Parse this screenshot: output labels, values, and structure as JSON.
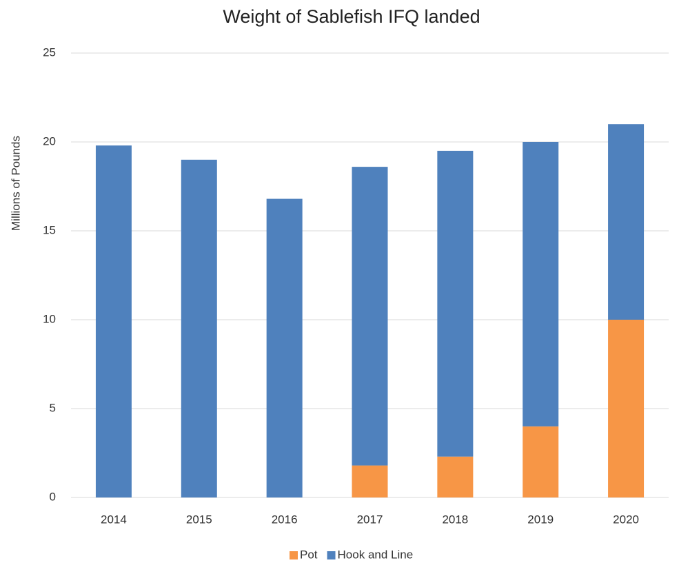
{
  "chart_data": {
    "type": "stacked_bar",
    "title": "Weight of Sablefish IFQ landed",
    "y_label": "Millions of Pounds",
    "categories": [
      "2014",
      "2015",
      "2016",
      "2017",
      "2018",
      "2019",
      "2020"
    ],
    "series": [
      {
        "name": "Pot",
        "color": "#f79646",
        "values": [
          0,
          0,
          0,
          1.8,
          2.3,
          4.0,
          10.0
        ]
      },
      {
        "name": "Hook and Line",
        "color": "#4f81bd",
        "values": [
          19.8,
          19.0,
          16.8,
          16.8,
          17.2,
          16.0,
          11.0
        ]
      }
    ],
    "ylim": [
      0,
      25
    ],
    "yticks": [
      0,
      5,
      10,
      15,
      20,
      25
    ],
    "grid": true,
    "legend": "bottom"
  }
}
